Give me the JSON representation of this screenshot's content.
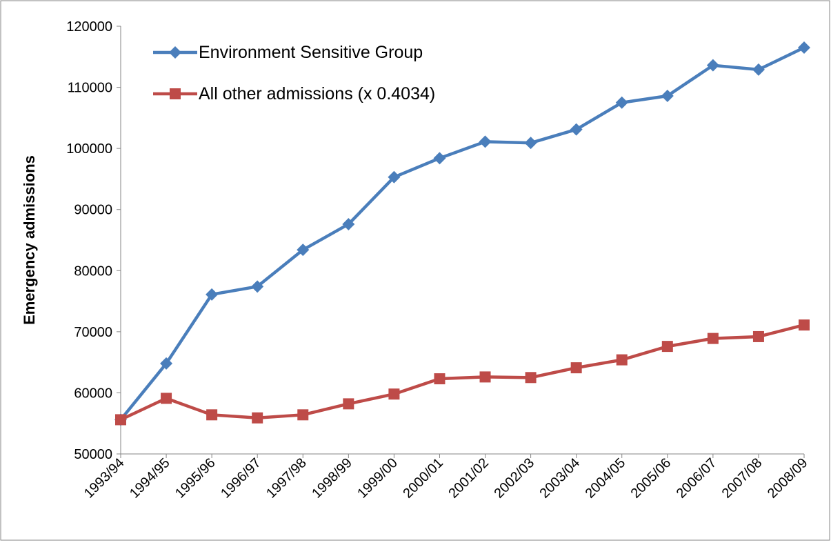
{
  "chart_data": {
    "type": "line",
    "y_label": "Emergency admissions",
    "categories": [
      "1993/94",
      "1994/95",
      "1995/96",
      "1996/97",
      "1997/98",
      "1998/99",
      "1999/00",
      "2000/01",
      "2001/02",
      "2002/03",
      "2003/04",
      "2004/05",
      "2005/06",
      "2006/07",
      "2007/08",
      "2008/09"
    ],
    "series": [
      {
        "name": "Environment Sensitive Group",
        "color": "#4a7ebb",
        "marker": "diamond",
        "values": [
          55600,
          64800,
          76100,
          77400,
          83400,
          87600,
          95300,
          98400,
          101100,
          100900,
          103100,
          107500,
          108600,
          113600,
          112900,
          116500
        ]
      },
      {
        "name": "All other admissions (x 0.4034)",
        "color": "#be4b48",
        "marker": "square",
        "values": [
          55600,
          59100,
          56400,
          55900,
          56400,
          58200,
          59800,
          62300,
          62600,
          62500,
          64100,
          65400,
          67600,
          68900,
          69200,
          71100
        ]
      }
    ],
    "ylim": [
      50000,
      120000
    ],
    "yticks": [
      50000,
      60000,
      70000,
      80000,
      90000,
      100000,
      110000,
      120000
    ],
    "grid": false,
    "legend": "upper-left"
  }
}
